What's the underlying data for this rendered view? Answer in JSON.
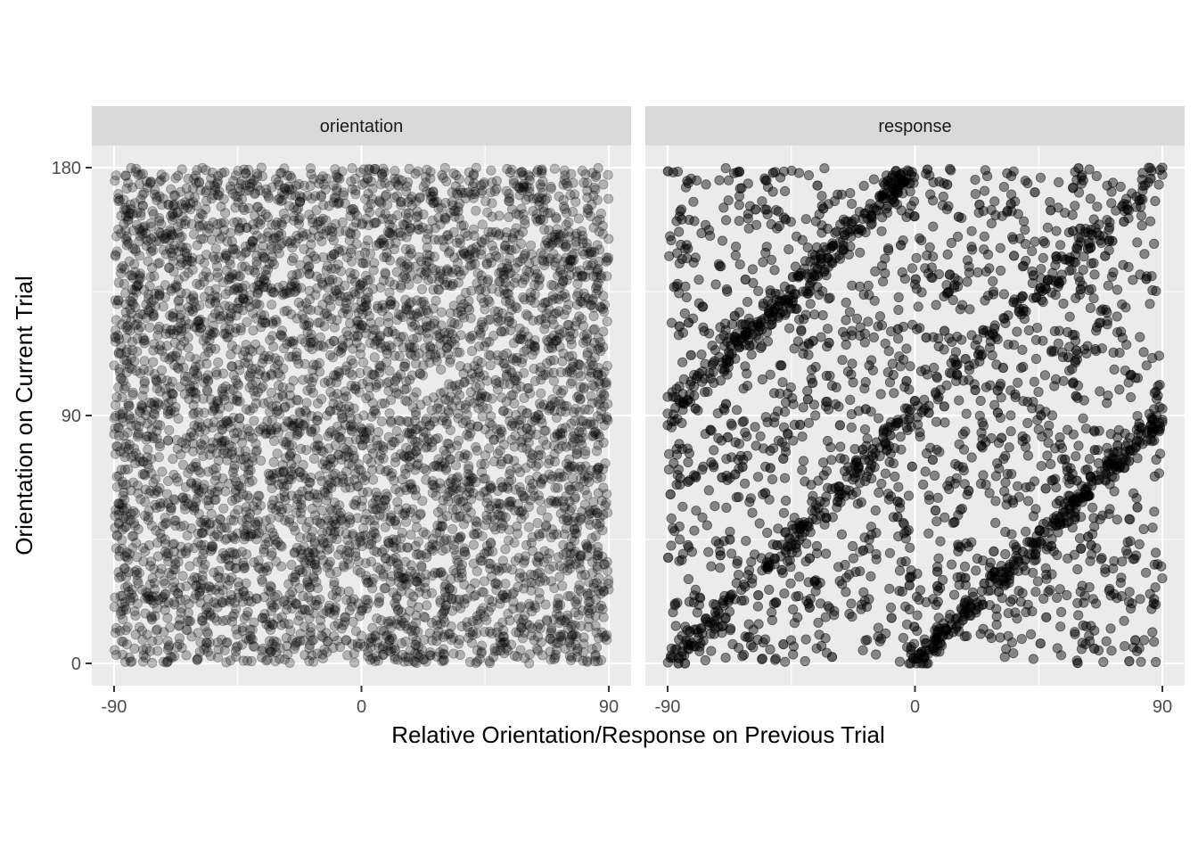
{
  "chart_data": {
    "type": "scatter",
    "xlabel": "Relative Orientation/Response on Previous Trial",
    "ylabel": "Orientation on Current Trial",
    "xlim": [
      -90,
      90
    ],
    "ylim": [
      0,
      180
    ],
    "x_ticks": [
      "-90",
      "0",
      "90"
    ],
    "y_ticks": [
      "0",
      "90",
      "180"
    ],
    "x_tick_values": [
      -90,
      0,
      90
    ],
    "y_tick_values": [
      0,
      90,
      180
    ],
    "grid": true,
    "point_color": "#000000",
    "point_alpha": 0.25,
    "panels": [
      {
        "facet": "orientation",
        "pattern": "uniform",
        "approx_points": 5000
      },
      {
        "facet": "response",
        "pattern": "diagonal bands",
        "approx_points": 5000,
        "bands": [
          {
            "from": [
              -90,
              90
            ],
            "to": [
              0,
              180
            ]
          },
          {
            "from": [
              -90,
              0
            ],
            "to": [
              90,
              180
            ]
          },
          {
            "from": [
              0,
              0
            ],
            "to": [
              90,
              90
            ]
          }
        ]
      }
    ]
  }
}
